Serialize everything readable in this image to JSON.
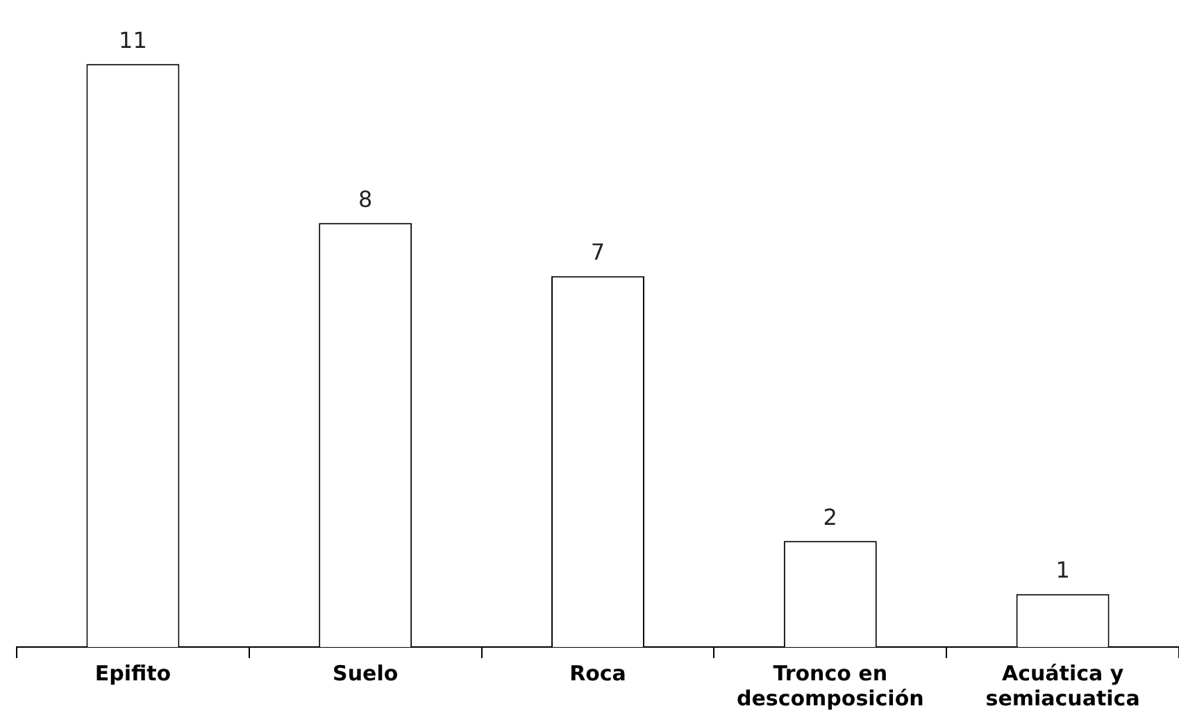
{
  "chart_data": {
    "type": "bar",
    "categories": [
      "Epifito",
      "Suelo",
      "Roca",
      "Tronco en descomposición",
      "Acuática y semiacuatica"
    ],
    "values": [
      11,
      8,
      7,
      2,
      1
    ],
    "color": "#ffffff",
    "data_labels": true,
    "grid": false,
    "legend": false,
    "tick_labels": "x"
  }
}
